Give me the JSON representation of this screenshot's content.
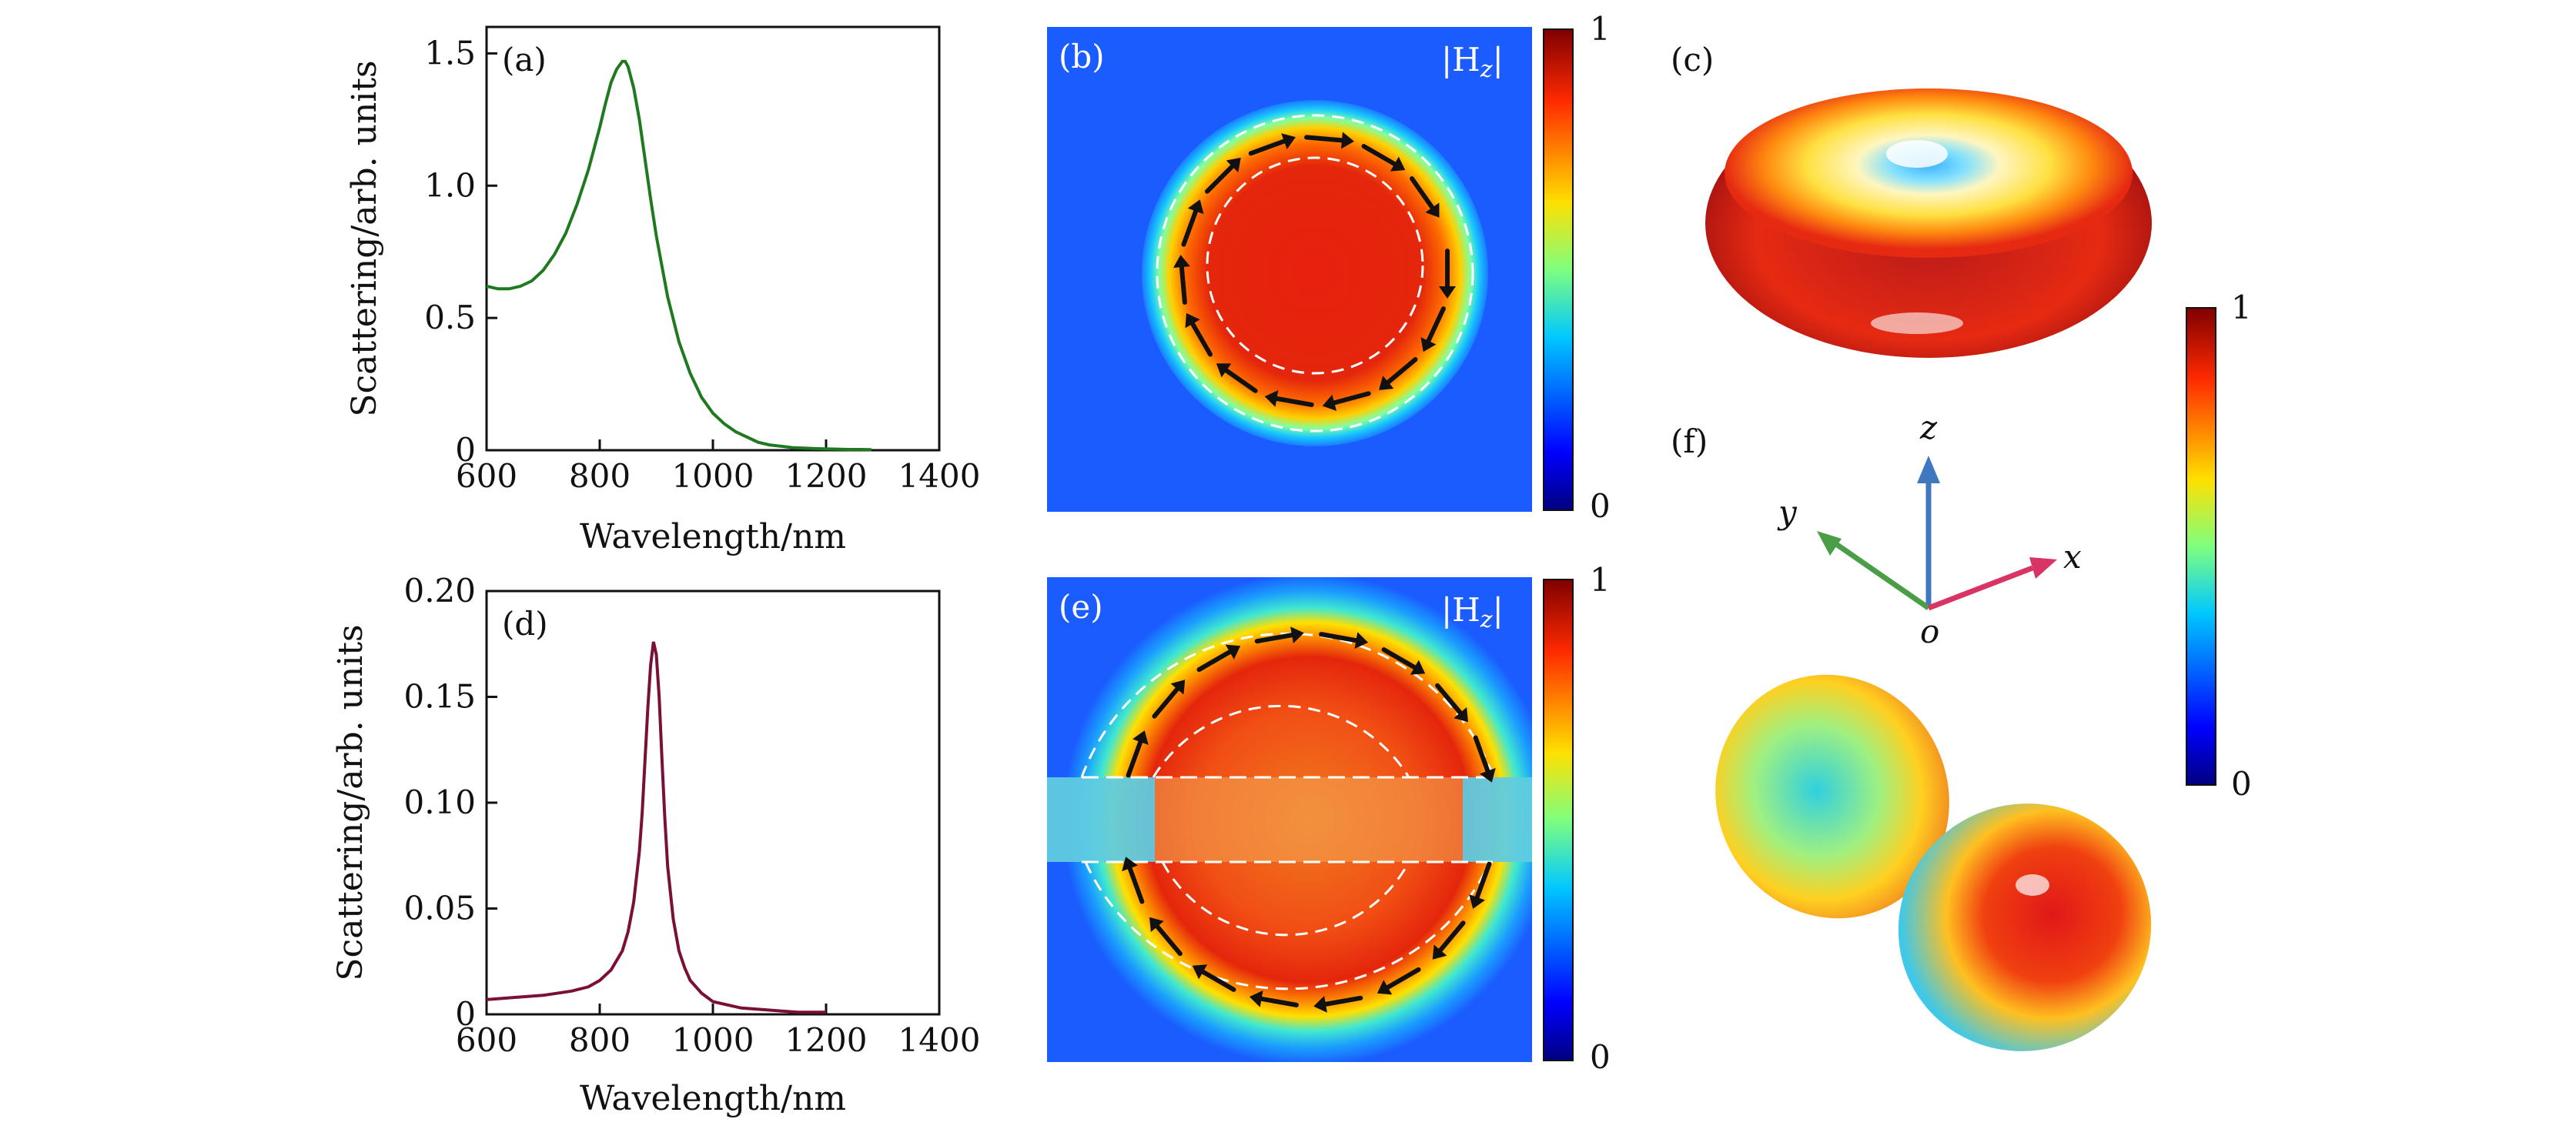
{
  "panels": {
    "a": {
      "label": "(a)"
    },
    "b": {
      "label": "(b)",
      "field_label": "|H",
      "field_sub": "z",
      "field_close": "|"
    },
    "c": {
      "label": "(c)"
    },
    "d": {
      "label": "(d)"
    },
    "e": {
      "label": "(e)",
      "field_label": "|H",
      "field_sub": "z",
      "field_close": "|"
    },
    "f": {
      "label": "(f)"
    }
  },
  "colorbars": [
    {
      "name": "colorbar-b",
      "max_label": "1",
      "min_label": "0"
    },
    {
      "name": "colorbar-e",
      "max_label": "1",
      "min_label": "0"
    },
    {
      "name": "colorbar-right",
      "max_label": "1",
      "min_label": "0"
    }
  ],
  "axes_triad": {
    "z": "z",
    "y": "y",
    "x": "x",
    "origin": "o",
    "colors": {
      "z": "#3f78c0",
      "y": "#4a9e45",
      "x": "#d83565"
    }
  },
  "colors": {
    "curve_a": "#1f7a1f",
    "curve_d": "#7a1038"
  },
  "chart_data": [
    {
      "type": "line",
      "name": "panel-a",
      "title": "",
      "xlabel": "Wavelength/nm",
      "ylabel": "Scattering/arb. units",
      "xlim": [
        600,
        1400
      ],
      "ylim": [
        0,
        1.6
      ],
      "xticks": [
        600,
        800,
        1000,
        1200,
        1400
      ],
      "xtick_labels": [
        "600",
        "800",
        "1000",
        "1200",
        "1400"
      ],
      "yticks": [
        0,
        0.5,
        1.0,
        1.5
      ],
      "ytick_labels": [
        "0",
        "0.5",
        "1.0",
        "1.5"
      ],
      "series": [
        {
          "name": "scattering",
          "color": "#1f7a1f",
          "x": [
            600,
            620,
            640,
            660,
            680,
            700,
            720,
            740,
            760,
            780,
            800,
            810,
            820,
            830,
            840,
            845,
            850,
            860,
            870,
            880,
            890,
            900,
            920,
            940,
            960,
            980,
            1000,
            1020,
            1040,
            1060,
            1080,
            1100,
            1120,
            1140,
            1160,
            1180,
            1200,
            1220,
            1240,
            1260,
            1280
          ],
          "y": [
            0.62,
            0.61,
            0.61,
            0.62,
            0.64,
            0.68,
            0.74,
            0.82,
            0.93,
            1.06,
            1.22,
            1.31,
            1.39,
            1.44,
            1.47,
            1.47,
            1.45,
            1.37,
            1.25,
            1.1,
            0.95,
            0.81,
            0.58,
            0.41,
            0.29,
            0.2,
            0.14,
            0.1,
            0.07,
            0.05,
            0.03,
            0.02,
            0.015,
            0.01,
            0.008,
            0.006,
            0.005,
            0.004,
            0.003,
            0.003,
            0.002
          ]
        }
      ]
    },
    {
      "type": "line",
      "name": "panel-d",
      "title": "",
      "xlabel": "Wavelength/nm",
      "ylabel": "Scattering/arb. units",
      "xlim": [
        600,
        1400
      ],
      "ylim": [
        0,
        0.2
      ],
      "xticks": [
        600,
        800,
        1000,
        1200,
        1400
      ],
      "xtick_labels": [
        "600",
        "800",
        "1000",
        "1200",
        "1400"
      ],
      "yticks": [
        0,
        0.05,
        0.1,
        0.15,
        0.2
      ],
      "ytick_labels": [
        "0",
        "0.05",
        "0.10",
        "0.15",
        "0.20"
      ],
      "series": [
        {
          "name": "scattering",
          "color": "#7a1038",
          "x": [
            600,
            650,
            700,
            750,
            780,
            800,
            820,
            840,
            850,
            860,
            870,
            875,
            880,
            885,
            890,
            895,
            900,
            905,
            910,
            915,
            920,
            930,
            940,
            950,
            960,
            980,
            1000,
            1050,
            1100,
            1150,
            1200
          ],
          "y": [
            0.007,
            0.008,
            0.009,
            0.011,
            0.013,
            0.016,
            0.021,
            0.03,
            0.039,
            0.053,
            0.077,
            0.095,
            0.12,
            0.145,
            0.165,
            0.176,
            0.17,
            0.15,
            0.12,
            0.093,
            0.07,
            0.045,
            0.03,
            0.022,
            0.016,
            0.01,
            0.006,
            0.003,
            0.002,
            0.001,
            0.001
          ]
        }
      ]
    }
  ]
}
